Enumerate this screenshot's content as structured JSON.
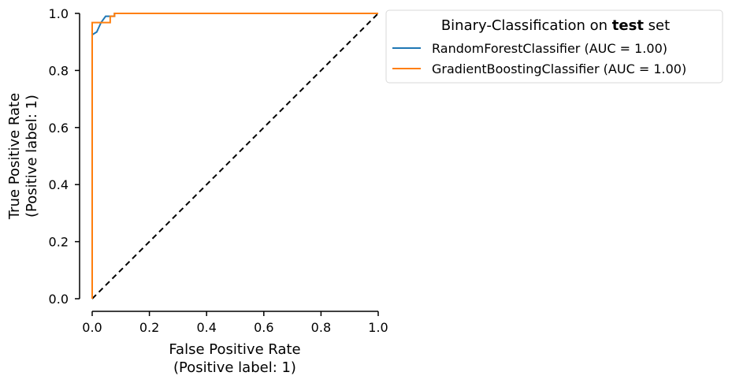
{
  "chart_data": {
    "type": "line",
    "xlabel_lines": [
      "False Positive Rate",
      "(Positive label: 1)"
    ],
    "ylabel_lines": [
      "True Positive Rate",
      "(Positive label: 1)"
    ],
    "xlim": [
      0.0,
      1.0
    ],
    "ylim": [
      0.0,
      1.0
    ],
    "xticks": [
      0.0,
      0.2,
      0.4,
      0.6,
      0.8,
      1.0
    ],
    "yticks": [
      0.0,
      0.2,
      0.4,
      0.6,
      0.8,
      1.0
    ],
    "xtick_labels": [
      "0.0",
      "0.2",
      "0.4",
      "0.6",
      "0.8",
      "1.0"
    ],
    "ytick_labels": [
      "0.0",
      "0.2",
      "0.4",
      "0.6",
      "0.8",
      "1.0"
    ],
    "grid": false,
    "legend": {
      "placement": "outside top-right",
      "title_parts": [
        "Binary-Classification on ",
        "test",
        " set"
      ]
    },
    "series": [
      {
        "name": "RandomForestClassifier (AUC = 1.00)",
        "color": "#1f77b4",
        "x": [
          0.0,
          0.0,
          0.0,
          0.016,
          0.016,
          0.031,
          0.031,
          0.047,
          0.047,
          0.078,
          0.078,
          1.0
        ],
        "y": [
          0.0,
          0.925,
          0.925,
          0.935,
          0.935,
          0.968,
          0.968,
          0.99,
          0.99,
          0.99,
          1.0,
          1.0
        ]
      },
      {
        "name": "GradientBoostingClassifier (AUC = 1.00)",
        "color": "#ff7f0e",
        "x": [
          0.0,
          0.0,
          0.0,
          0.063,
          0.063,
          0.078,
          0.078,
          1.0
        ],
        "y": [
          0.0,
          0.968,
          0.968,
          0.968,
          0.99,
          0.99,
          1.0,
          1.0
        ]
      }
    ],
    "reference_line": {
      "style": "dashed",
      "color": "#000000",
      "x": [
        0.0,
        1.0
      ],
      "y": [
        0.0,
        1.0
      ]
    }
  }
}
